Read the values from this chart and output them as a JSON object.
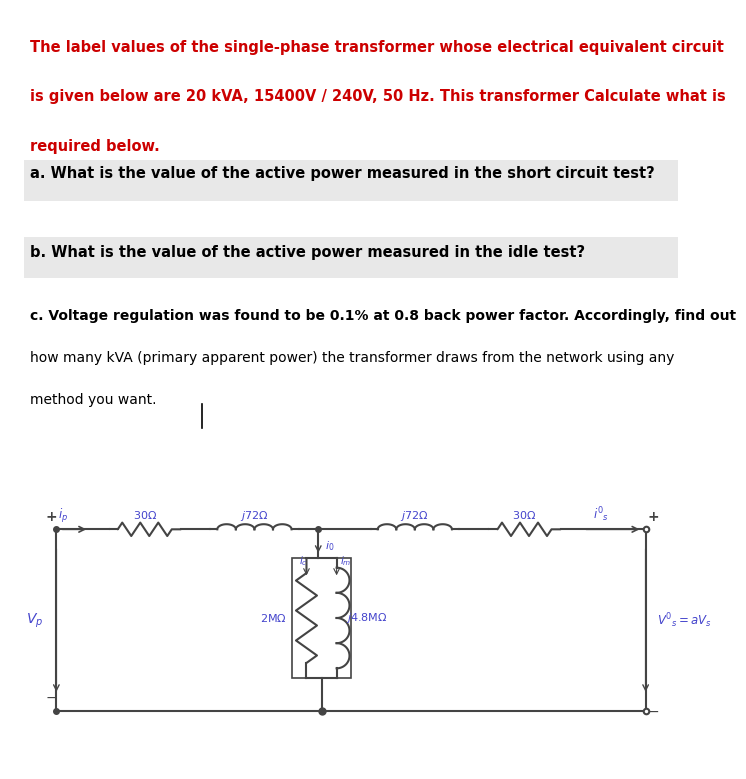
{
  "title_lines": [
    "The label values of the single-phase transformer whose electrical equivalent circuit",
    "is given below are 20 kVA, 15400V / 240V, 50 Hz. This transformer Calculate what is",
    "required below."
  ],
  "title_color": "#cc0000",
  "q_a": "a. What is the value of the active power measured in the short circuit test?",
  "q_b": "b. What is the value of the active power measured in the idle test?",
  "q_c_lines": [
    "c. Voltage regulation was found to be 0.1% at 0.8 back power factor. Accordingly, find out",
    "how many kVA (primary apparent power) the transformer draws from the network using any",
    "method you want."
  ],
  "bg_color": "#ffffff",
  "panel_color": "#e8e8e8",
  "circuit_color": "#444444",
  "label_color": "#4444cc"
}
